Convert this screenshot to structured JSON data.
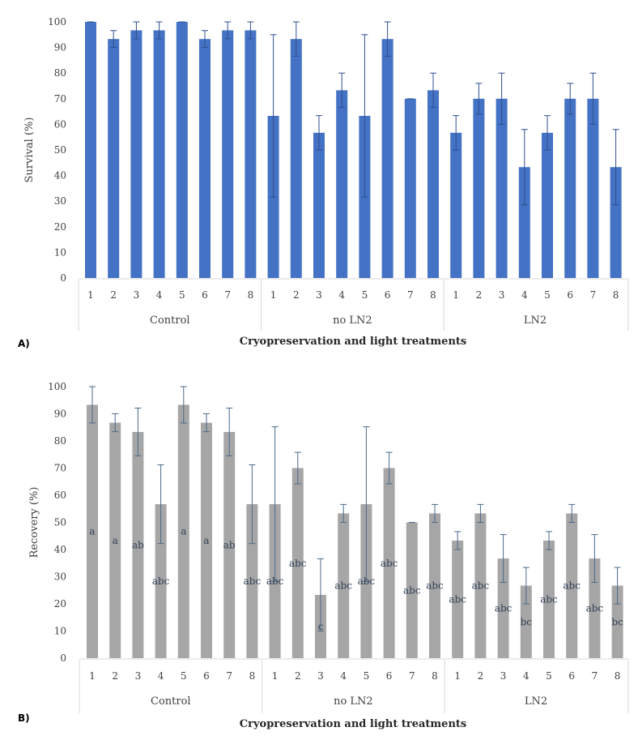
{
  "chart_data": [
    {
      "type": "bar",
      "panel_label": "A)",
      "title": "",
      "ylabel": "Survival (%)",
      "xlabel": "Cryopreservation and light treatments",
      "ylim": [
        0,
        100
      ],
      "yticks": [
        "0",
        "10",
        "20",
        "30",
        "40",
        "50",
        "60",
        "70",
        "80",
        "90",
        "100"
      ],
      "groups": [
        {
          "name": "Control",
          "categories": [
            "1",
            "2",
            "3",
            "4",
            "5",
            "6",
            "7",
            "8"
          ]
        },
        {
          "name": "no LN2",
          "categories": [
            "1",
            "2",
            "3",
            "4",
            "5",
            "6",
            "7",
            "8"
          ]
        },
        {
          "name": "LN2",
          "categories": [
            "1",
            "2",
            "3",
            "4",
            "5",
            "6",
            "7",
            "8"
          ]
        }
      ],
      "values": [
        100,
        93.3,
        96.7,
        96.7,
        100,
        93.3,
        96.7,
        96.7,
        63.3,
        93.3,
        56.7,
        73.3,
        63.3,
        93.3,
        70,
        73.3,
        56.7,
        70,
        70,
        43.3,
        56.7,
        70,
        70,
        43.3
      ],
      "errors": [
        0,
        3.3,
        3.3,
        3.3,
        0,
        3.3,
        3.3,
        3.3,
        31.7,
        6.7,
        6.7,
        6.7,
        31.7,
        6.7,
        0,
        6.7,
        6.7,
        6,
        10,
        14.7,
        6.7,
        6,
        10,
        14.7
      ],
      "bar_color": "#4472c4",
      "error_color": "#2f4f8f"
    },
    {
      "type": "bar",
      "panel_label": "B)",
      "title": "",
      "ylabel": "Recovery (%)",
      "xlabel": "Cryopreservation and light treatments",
      "ylim": [
        0,
        100
      ],
      "yticks": [
        "0",
        "10",
        "20",
        "30",
        "40",
        "50",
        "60",
        "70",
        "80",
        "90",
        "100"
      ],
      "groups": [
        {
          "name": "Control",
          "categories": [
            "1",
            "2",
            "3",
            "4",
            "5",
            "6",
            "7",
            "8"
          ]
        },
        {
          "name": "no LN2",
          "categories": [
            "1",
            "2",
            "3",
            "4",
            "5",
            "6",
            "7",
            "8"
          ]
        },
        {
          "name": "LN2",
          "categories": [
            "1",
            "2",
            "3",
            "4",
            "5",
            "6",
            "7",
            "8"
          ]
        }
      ],
      "values": [
        93.3,
        86.7,
        83.3,
        56.7,
        93.3,
        86.7,
        83.3,
        56.7,
        56.7,
        70,
        23.3,
        53.3,
        56.7,
        70,
        50,
        53.3,
        43.3,
        53.3,
        36.7,
        26.7,
        43.3,
        53.3,
        36.7,
        26.7
      ],
      "errors": [
        6.7,
        3.3,
        8.8,
        14.5,
        6.7,
        3.3,
        8.8,
        14.5,
        28.5,
        5.8,
        13.3,
        3.3,
        28.5,
        5.8,
        0,
        3.3,
        3.3,
        3.3,
        8.8,
        6.7,
        3.3,
        3.3,
        8.8,
        6.7
      ],
      "letters": [
        "a",
        "a",
        "ab",
        "abc",
        "a",
        "a",
        "ab",
        "abc",
        "abc",
        "abc",
        "c",
        "abc",
        "abc",
        "abc",
        "abc",
        "abc",
        "abc",
        "abc",
        "abc",
        "bc",
        "abc",
        "abc",
        "abc",
        "bc"
      ],
      "bar_color": "#a6a6a6",
      "error_color": "#4a6a8a"
    }
  ]
}
